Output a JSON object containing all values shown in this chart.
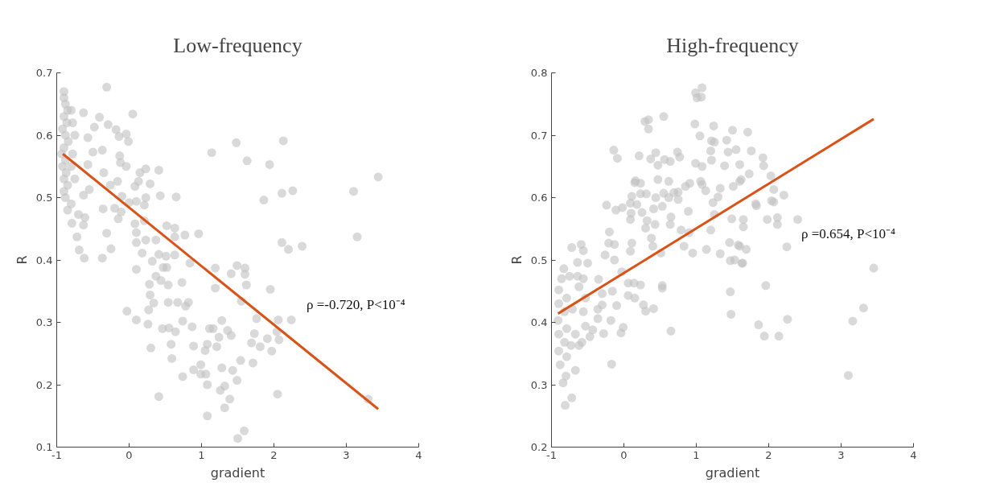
{
  "chart_data": [
    {
      "type": "scatter",
      "title": "Low-frequency",
      "xlabel": "gradient",
      "ylabel": "R",
      "xlim": [
        -1,
        4
      ],
      "ylim": [
        0.1,
        0.7
      ],
      "xticks": [
        -1,
        0,
        1,
        2,
        3,
        4
      ],
      "yticks": [
        0.1,
        0.2,
        0.3,
        0.4,
        0.5,
        0.6,
        0.7
      ],
      "grid": false,
      "annotations": [
        "ρ =-0.720,  P<10⁻⁴"
      ],
      "series": [
        {
          "color": "#bfbfbf",
          "marker": "circle",
          "x": [
            -0.9,
            -0.9,
            -0.88,
            -0.85,
            -0.9,
            -0.86,
            -0.92,
            -0.88,
            -0.84,
            -0.9,
            -0.93,
            -0.88,
            -0.92,
            -0.87,
            -0.9,
            -0.85,
            -0.9,
            -0.88,
            -0.8,
            -0.85,
            -0.8,
            -0.78,
            -0.75,
            -0.78,
            -0.75,
            -0.8,
            -0.31,
            -0.63,
            -0.41,
            0.05,
            -0.29,
            -0.48,
            -0.18,
            -0.04,
            -0.01,
            -0.14,
            -0.57,
            1.48,
            1.14,
            1.63,
            -0.5,
            -0.37,
            -0.13,
            -0.12,
            -0.04,
            -0.57,
            -0.35,
            0.15,
            0.23,
            0.41,
            0.13,
            0.08,
            0.29,
            -0.16,
            -0.26,
            -0.55,
            -0.63,
            -0.1,
            0.23,
            0.43,
            0.65,
            0.0,
            0.1,
            0.21,
            -0.36,
            -0.2,
            -0.11,
            -0.7,
            -0.61,
            -0.15,
            -0.79,
            -0.63,
            0.21,
            0.08,
            0.52,
            0.63,
            0.1,
            -0.72,
            -0.31,
            0.23,
            0.37,
            0.63,
            0.77,
            0.96,
            0.1,
            -0.25,
            -0.69,
            -0.62,
            -0.37,
            0.18,
            0.32,
            0.41,
            0.51,
            0.63,
            0.52,
            0.47,
            0.84,
            0.1,
            1.19,
            1.49,
            1.6,
            1.41,
            1.6,
            1.62,
            0.37,
            0.44,
            0.54,
            0.73,
            0.28,
            1.19,
            0.29,
            0.34,
            0.27,
            0.54,
            0.67,
            0.82,
            0.78,
            1.55,
            -0.03,
            0.1,
            0.26,
            0.74,
            0.87,
            0.46,
            0.55,
            0.64,
            1.11,
            1.16,
            1.28,
            1.36,
            1.41,
            1.24,
            0.58,
            0.3,
            0.89,
            1.08,
            1.05,
            1.21,
            0.59,
            1.28,
            0.89,
            0.99,
            0.99,
            1.06,
            0.74,
            1.08,
            1.43,
            1.49,
            1.54,
            1.32,
            1.26,
            1.39,
            1.32,
            0.41,
            1.08,
            1.59,
            1.5,
            2.13,
            1.94,
            3.44,
            3.1,
            2.11,
            2.26,
            1.86,
            3.15,
            2.11,
            2.2,
            2.39,
            1.95,
            1.76,
            2.06,
            2.24,
            2.04,
            1.73,
            1.91,
            1.69,
            1.81,
            1.97,
            2.07,
            1.71,
            2.05,
            3.3
          ],
          "values": [
            0.67,
            0.66,
            0.65,
            0.64,
            0.63,
            0.62,
            0.61,
            0.6,
            0.59,
            0.58,
            0.57,
            0.56,
            0.55,
            0.54,
            0.53,
            0.52,
            0.51,
            0.5,
            0.49,
            0.48,
            0.64,
            0.62,
            0.6,
            0.57,
            0.53,
            0.55,
            0.677,
            0.636,
            0.629,
            0.634,
            0.617,
            0.613,
            0.609,
            0.602,
            0.59,
            0.598,
            0.596,
            0.588,
            0.572,
            0.559,
            0.573,
            0.576,
            0.567,
            0.556,
            0.55,
            0.553,
            0.54,
            0.54,
            0.546,
            0.544,
            0.526,
            0.518,
            0.522,
            0.526,
            0.52,
            0.513,
            0.504,
            0.502,
            0.5,
            0.503,
            0.501,
            0.492,
            0.494,
            0.488,
            0.482,
            0.483,
            0.477,
            0.473,
            0.468,
            0.466,
            0.459,
            0.456,
            0.463,
            0.458,
            0.455,
            0.451,
            0.444,
            0.437,
            0.443,
            0.432,
            0.432,
            0.437,
            0.44,
            0.442,
            0.428,
            0.418,
            0.416,
            0.403,
            0.403,
            0.411,
            0.398,
            0.409,
            0.406,
            0.408,
            0.388,
            0.388,
            0.395,
            0.385,
            0.387,
            0.391,
            0.387,
            0.378,
            0.377,
            0.36,
            0.374,
            0.367,
            0.36,
            0.364,
            0.361,
            0.355,
            0.344,
            0.331,
            0.32,
            0.332,
            0.332,
            0.332,
            0.326,
            0.334,
            0.318,
            0.304,
            0.297,
            0.302,
            0.293,
            0.29,
            0.291,
            0.285,
            0.29,
            0.29,
            0.303,
            0.287,
            0.279,
            0.276,
            0.265,
            0.259,
            0.262,
            0.265,
            0.255,
            0.261,
            0.242,
            0.227,
            0.224,
            0.232,
            0.217,
            0.217,
            0.213,
            0.2,
            0.223,
            0.207,
            0.239,
            0.198,
            0.191,
            0.177,
            0.163,
            0.181,
            0.15,
            0.126,
            0.114,
            0.591,
            0.553,
            0.533,
            0.51,
            0.507,
            0.511,
            0.496,
            0.437,
            0.428,
            0.417,
            0.422,
            0.353,
            0.306,
            0.304,
            0.304,
            0.285,
            0.282,
            0.274,
            0.267,
            0.261,
            0.254,
            0.272,
            0.235,
            0.185,
            0.177
          ]
        },
        {
          "type": "line",
          "color": "#d95319",
          "x": [
            -0.915,
            3.44
          ],
          "values": [
            0.57,
            0.161
          ]
        }
      ]
    },
    {
      "type": "scatter",
      "title": "High-frequency",
      "xlabel": "gradient",
      "ylabel": "R",
      "xlim": [
        -1,
        4
      ],
      "ylim": [
        0.2,
        0.8
      ],
      "xticks": [
        -1,
        0,
        1,
        2,
        3,
        4
      ],
      "yticks": [
        0.2,
        0.3,
        0.4,
        0.5,
        0.6,
        0.7,
        0.8
      ],
      "grid": false,
      "annotations": [
        "ρ =0.654,  P<10⁻⁴"
      ],
      "series": [
        {
          "color": "#bfbfbf",
          "marker": "circle",
          "x": [
            -0.83,
            -0.86,
            -0.75,
            -0.9,
            -0.79,
            -0.9,
            -0.82,
            -0.91,
            -0.79,
            -0.9,
            -0.82,
            -0.9,
            -0.79,
            -0.88,
            -0.8,
            -0.84,
            -0.67,
            -0.72,
            -0.81,
            -0.71,
            -0.67,
            -0.62,
            -0.73,
            -0.64,
            -0.72,
            -0.59,
            -0.56,
            -0.64,
            -0.5,
            -0.56,
            -0.62,
            -0.53,
            -0.56,
            -0.53,
            -0.58,
            -0.47,
            -0.43,
            -0.36,
            -0.36,
            -0.3,
            -0.3,
            -0.35,
            -0.28,
            -0.18,
            -0.16,
            -0.1,
            -0.04,
            -0.01,
            -0.17,
            -0.26,
            -0.13,
            -0.2,
            -0.21,
            -0.13,
            -0.24,
            -0.11,
            -0.02,
            -0.14,
            -0.09,
            -0.03,
            0.06,
            0.14,
            0.23,
            0.15,
            0.06,
            0.27,
            0.3,
            0.41,
            0.53,
            0.53,
            0.65,
            0.09,
            0.11,
            0.09,
            0.1,
            0.09,
            0.18,
            0.11,
            0.16,
            0.15,
            0.23,
            0.23,
            0.31,
            0.25,
            0.32,
            0.3,
            0.38,
            0.4,
            0.51,
            0.41,
            0.43,
            0.44,
            0.53,
            0.55,
            0.47,
            0.62,
            0.21,
            0.37,
            0.44,
            0.47,
            0.56,
            0.64,
            0.74,
            0.77,
            0.29,
            0.34,
            0.34,
            0.55,
            0.62,
            0.65,
            0.64,
            0.69,
            0.75,
            0.75,
            0.79,
            0.83,
            0.9,
            0.89,
            0.85,
            0.91,
            0.95,
            0.98,
            0.99,
            1.01,
            1.07,
            1.08,
            1.05,
            0.99,
            1.08,
            1.06,
            1.08,
            1.13,
            1.14,
            1.2,
            1.23,
            1.25,
            1.21,
            1.2,
            1.21,
            1.25,
            1.24,
            1.3,
            1.33,
            1.33,
            1.39,
            1.42,
            1.44,
            1.46,
            1.47,
            1.47,
            1.48,
            1.49,
            1.5,
            1.51,
            1.53,
            1.55,
            1.6,
            1.6,
            1.58,
            1.63,
            1.71,
            1.76,
            1.92,
            1.93,
            1.73,
            1.62,
            2.03,
            2.07,
            2.21,
            1.82,
            1.83,
            2.04,
            2.07,
            1.98,
            2.12,
            2.12,
            2.4,
            1.65,
            1.65,
            1.6,
            1.69,
            2.25,
            1.64,
            3.45,
            1.96,
            3.31,
            2.26,
            1.86,
            3.16,
            1.94,
            2.14,
            3.1
          ],
          "values": [
            0.486,
            0.47,
            0.474,
            0.452,
            0.439,
            0.43,
            0.417,
            0.403,
            0.39,
            0.381,
            0.368,
            0.354,
            0.345,
            0.332,
            0.314,
            0.303,
            0.323,
            0.279,
            0.267,
            0.421,
            0.381,
            0.363,
            0.363,
            0.474,
            0.52,
            0.525,
            0.515,
            0.496,
            0.495,
            0.47,
            0.457,
            0.439,
            0.417,
            0.394,
            0.368,
            0.377,
            0.388,
            0.406,
            0.421,
            0.428,
            0.446,
            0.469,
            0.382,
            0.403,
            0.45,
            0.427,
            0.383,
            0.392,
            0.333,
            0.508,
            0.5,
            0.545,
            0.527,
            0.525,
            0.588,
            0.58,
            0.584,
            0.676,
            0.663,
            0.481,
            0.463,
            0.463,
            0.46,
            0.439,
            0.443,
            0.428,
            0.418,
            0.422,
            0.459,
            0.455,
            0.386,
            0.514,
            0.527,
            0.565,
            0.575,
            0.591,
            0.589,
            0.602,
            0.627,
            0.624,
            0.623,
            0.606,
            0.606,
            0.576,
            0.563,
            0.551,
            0.535,
            0.522,
            0.511,
            0.582,
            0.557,
            0.6,
            0.586,
            0.607,
            0.629,
            0.626,
            0.667,
            0.662,
            0.672,
            0.652,
            0.661,
            0.658,
            0.673,
            0.665,
            0.722,
            0.725,
            0.71,
            0.73,
            0.6,
            0.569,
            0.557,
            0.608,
            0.609,
            0.597,
            0.548,
            0.522,
            0.544,
            0.578,
            0.618,
            0.623,
            0.511,
            0.718,
            0.768,
            0.76,
            0.761,
            0.776,
            0.699,
            0.655,
            0.65,
            0.626,
            0.621,
            0.611,
            0.517,
            0.548,
            0.592,
            0.573,
            0.66,
            0.675,
            0.691,
            0.689,
            0.715,
            0.601,
            0.615,
            0.51,
            0.651,
            0.692,
            0.673,
            0.528,
            0.499,
            0.449,
            0.413,
            0.566,
            0.708,
            0.618,
            0.5,
            0.677,
            0.653,
            0.626,
            0.524,
            0.495,
            0.705,
            0.675,
            0.664,
            0.651,
            0.638,
            0.629,
            0.635,
            0.613,
            0.604,
            0.59,
            0.587,
            0.595,
            0.593,
            0.565,
            0.568,
            0.557,
            0.565,
            0.565,
            0.553,
            0.522,
            0.517,
            0.521,
            0.495,
            0.487,
            0.459,
            0.423,
            0.405,
            0.396,
            0.402,
            0.378,
            0.378,
            0.315
          ]
        },
        {
          "type": "line",
          "color": "#d95319",
          "x": [
            -0.91,
            3.45
          ],
          "values": [
            0.414,
            0.726
          ]
        }
      ]
    }
  ]
}
